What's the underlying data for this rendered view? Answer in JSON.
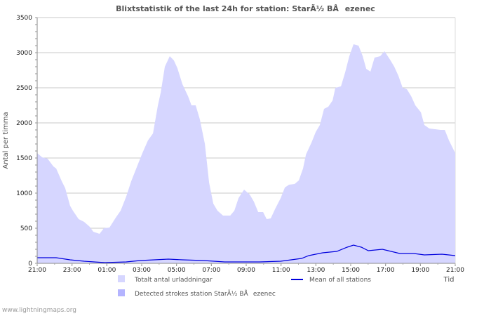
{
  "chart_data": {
    "type": "area",
    "title": "Blixtstatistik of the last 24h for station: StarÃ½ BÅezenec",
    "ylabel": "Antal per timma",
    "xlabel": "Tid",
    "ylim": [
      0,
      3500
    ],
    "xlim_hours": [
      0,
      24
    ],
    "yticks": [
      0,
      500,
      1000,
      1500,
      2000,
      2500,
      3000,
      3500
    ],
    "xtick_labels": [
      "21:00",
      "23:00",
      "01:00",
      "03:00",
      "05:00",
      "07:00",
      "09:00",
      "11:00",
      "13:00",
      "15:00",
      "17:00",
      "19:00",
      "21:00"
    ],
    "grid": true,
    "series": [
      {
        "name": "Totalt antal urladdningar",
        "kind": "area",
        "color": "#d6d6ff",
        "points": [
          [
            0,
            1570
          ],
          [
            0.28,
            1510
          ],
          [
            0.6,
            1490
          ],
          [
            0.93,
            1380
          ],
          [
            1.09,
            1350
          ],
          [
            1.41,
            1170
          ],
          [
            1.61,
            1070
          ],
          [
            1.89,
            820
          ],
          [
            2.05,
            750
          ],
          [
            2.38,
            630
          ],
          [
            2.7,
            590
          ],
          [
            3.02,
            520
          ],
          [
            3.22,
            450
          ],
          [
            3.58,
            420
          ],
          [
            3.83,
            500
          ],
          [
            4.15,
            510
          ],
          [
            4.51,
            650
          ],
          [
            4.79,
            750
          ],
          [
            5.11,
            950
          ],
          [
            5.4,
            1170
          ],
          [
            5.72,
            1370
          ],
          [
            6.04,
            1570
          ],
          [
            6.36,
            1750
          ],
          [
            6.65,
            1850
          ],
          [
            6.93,
            2250
          ],
          [
            7.09,
            2430
          ],
          [
            7.33,
            2800
          ],
          [
            7.61,
            2950
          ],
          [
            7.85,
            2890
          ],
          [
            8.05,
            2780
          ],
          [
            8.34,
            2550
          ],
          [
            8.66,
            2380
          ],
          [
            8.86,
            2250
          ],
          [
            9.1,
            2250
          ],
          [
            9.34,
            2050
          ],
          [
            9.63,
            1700
          ],
          [
            9.87,
            1150
          ],
          [
            10.11,
            850
          ],
          [
            10.35,
            750
          ],
          [
            10.67,
            680
          ],
          [
            11.08,
            680
          ],
          [
            11.32,
            750
          ],
          [
            11.56,
            930
          ],
          [
            11.88,
            1050
          ],
          [
            12.2,
            980
          ],
          [
            12.44,
            880
          ],
          [
            12.69,
            730
          ],
          [
            12.97,
            730
          ],
          [
            13.17,
            630
          ],
          [
            13.41,
            640
          ],
          [
            13.65,
            770
          ],
          [
            13.98,
            930
          ],
          [
            14.22,
            1080
          ],
          [
            14.46,
            1120
          ],
          [
            14.78,
            1130
          ],
          [
            15.02,
            1180
          ],
          [
            15.26,
            1350
          ],
          [
            15.43,
            1550
          ],
          [
            15.75,
            1720
          ],
          [
            15.99,
            1870
          ],
          [
            16.23,
            1970
          ],
          [
            16.47,
            2200
          ],
          [
            16.71,
            2230
          ],
          [
            16.96,
            2320
          ],
          [
            17.12,
            2500
          ],
          [
            17.44,
            2520
          ],
          [
            17.68,
            2720
          ],
          [
            17.92,
            2950
          ],
          [
            18.16,
            3120
          ],
          [
            18.45,
            3100
          ],
          [
            18.69,
            2950
          ],
          [
            18.89,
            2770
          ],
          [
            19.13,
            2730
          ],
          [
            19.37,
            2930
          ],
          [
            19.69,
            2950
          ],
          [
            19.94,
            3020
          ],
          [
            20.26,
            2900
          ],
          [
            20.5,
            2800
          ],
          [
            20.74,
            2670
          ],
          [
            20.98,
            2500
          ],
          [
            21.22,
            2480
          ],
          [
            21.47,
            2380
          ],
          [
            21.71,
            2250
          ],
          [
            22.03,
            2150
          ],
          [
            22.23,
            1970
          ],
          [
            22.51,
            1920
          ],
          [
            22.84,
            1910
          ],
          [
            23.16,
            1900
          ],
          [
            23.4,
            1900
          ],
          [
            23.64,
            1750
          ],
          [
            24,
            1570
          ]
        ]
      },
      {
        "name": "Detected strokes station StarÃ½ BÅezenec",
        "kind": "area",
        "color": "#b4b4ff",
        "points": []
      },
      {
        "name": "Mean of all stations",
        "kind": "line",
        "color": "#0000dd",
        "points": [
          [
            0,
            80
          ],
          [
            1.09,
            80
          ],
          [
            1.89,
            50
          ],
          [
            2.7,
            30
          ],
          [
            3.89,
            10
          ],
          [
            5.11,
            20
          ],
          [
            5.92,
            40
          ],
          [
            7.53,
            60
          ],
          [
            8.34,
            50
          ],
          [
            9.55,
            40
          ],
          [
            10.76,
            20
          ],
          [
            12.76,
            20
          ],
          [
            13.98,
            30
          ],
          [
            15.18,
            70
          ],
          [
            15.59,
            110
          ],
          [
            16.39,
            150
          ],
          [
            17.2,
            170
          ],
          [
            17.8,
            230
          ],
          [
            18.16,
            260
          ],
          [
            18.61,
            230
          ],
          [
            19.01,
            180
          ],
          [
            19.82,
            200
          ],
          [
            20.82,
            140
          ],
          [
            21.63,
            140
          ],
          [
            22.23,
            120
          ],
          [
            23.24,
            130
          ],
          [
            24,
            110
          ]
        ]
      }
    ]
  },
  "footer": "www.lightningmaps.org"
}
